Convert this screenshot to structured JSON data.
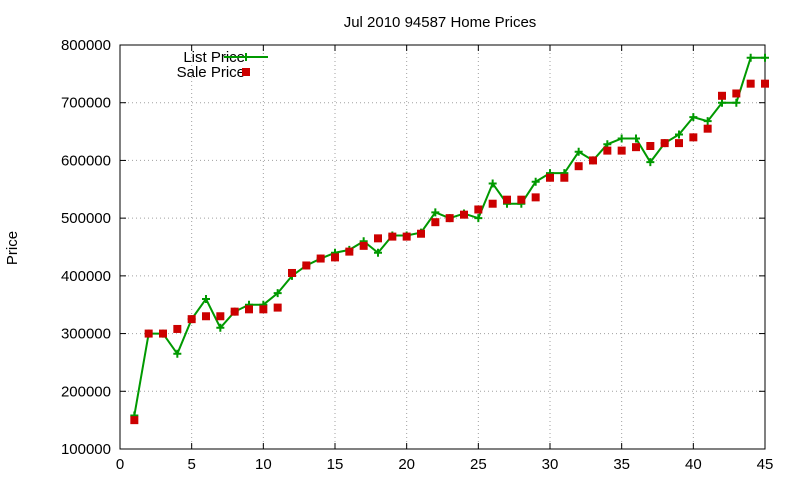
{
  "chart_data": {
    "type": "line",
    "title": "Jul 2010 94587 Home Prices",
    "ylabel": "Price",
    "xlabel": "",
    "xlim": [
      0,
      45
    ],
    "ylim": [
      100000,
      800000
    ],
    "xticks": [
      0,
      5,
      10,
      15,
      20,
      25,
      30,
      35,
      40,
      45
    ],
    "yticks": [
      100000,
      200000,
      300000,
      400000,
      500000,
      600000,
      700000,
      800000
    ],
    "grid": true,
    "legend_position": "top-left",
    "series": [
      {
        "name": "List Price",
        "style": "line-plus",
        "color": "#009900",
        "x": [
          1,
          2,
          3,
          4,
          5,
          6,
          7,
          8,
          9,
          10,
          11,
          12,
          13,
          14,
          15,
          16,
          17,
          18,
          19,
          20,
          21,
          22,
          23,
          24,
          25,
          26,
          27,
          28,
          29,
          30,
          31,
          32,
          33,
          34,
          35,
          36,
          37,
          38,
          39,
          40,
          41,
          42,
          43,
          44,
          45
        ],
        "values": [
          158000,
          300000,
          300000,
          265000,
          325000,
          360000,
          310000,
          338000,
          350000,
          350000,
          370000,
          400000,
          418000,
          430000,
          440000,
          445000,
          460000,
          440000,
          470000,
          470000,
          475000,
          510000,
          500000,
          508000,
          500000,
          560000,
          525000,
          525000,
          563000,
          578000,
          578000,
          615000,
          600000,
          628000,
          638000,
          638000,
          597000,
          630000,
          645000,
          675000,
          668000,
          700000,
          700000,
          778000,
          778000
        ]
      },
      {
        "name": "Sale Price",
        "style": "square-markers",
        "color": "#cc0000",
        "x": [
          1,
          2,
          3,
          4,
          5,
          6,
          7,
          8,
          9,
          10,
          11,
          12,
          13,
          14,
          15,
          16,
          17,
          18,
          19,
          20,
          21,
          22,
          23,
          24,
          25,
          26,
          27,
          28,
          29,
          30,
          31,
          32,
          33,
          34,
          35,
          36,
          37,
          38,
          39,
          40,
          41,
          42,
          43,
          44,
          45
        ],
        "values": [
          150000,
          300000,
          300000,
          308000,
          325000,
          330000,
          330000,
          338000,
          342000,
          342000,
          345000,
          405000,
          418000,
          430000,
          432000,
          442000,
          452000,
          465000,
          468000,
          468000,
          473000,
          493000,
          500000,
          506000,
          515000,
          525000,
          532000,
          532000,
          536000,
          570000,
          570000,
          590000,
          600000,
          617000,
          617000,
          623000,
          625000,
          630000,
          630000,
          640000,
          655000,
          712000,
          716000,
          733000,
          733000
        ]
      }
    ]
  }
}
